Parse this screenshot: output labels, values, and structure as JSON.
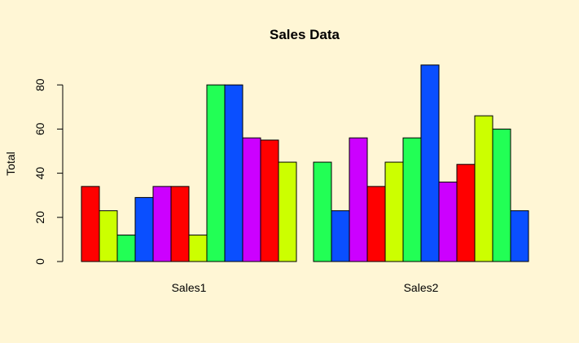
{
  "chart_data": {
    "type": "bar",
    "title": "Sales Data",
    "xlabel": "",
    "ylabel": "Total",
    "ylim": [
      0,
      88
    ],
    "yticks": [
      0,
      20,
      40,
      60,
      80
    ],
    "grid": false,
    "groups": [
      {
        "label": "Sales1",
        "values": [
          34,
          23,
          12,
          29,
          34,
          34,
          12,
          80,
          80,
          56,
          55,
          45
        ],
        "colors": [
          "#FF0000",
          "#CCFF00",
          "#22FF55",
          "#0A4FFF",
          "#CC00FF",
          "#FF0000",
          "#CCFF00",
          "#22FF55",
          "#0A4FFF",
          "#CC00FF",
          "#FF0000",
          "#CCFF00"
        ]
      },
      {
        "label": "Sales2",
        "values": [
          45,
          23,
          56,
          34,
          45,
          56,
          89,
          36,
          44,
          66,
          60,
          23
        ],
        "colors": [
          "#22FF55",
          "#0A4FFF",
          "#CC00FF",
          "#FF0000",
          "#CCFF00",
          "#22FF55",
          "#0A4FFF",
          "#CC00FF",
          "#FF0000",
          "#CCFF00",
          "#22FF55",
          "#0A4FFF"
        ]
      }
    ]
  }
}
